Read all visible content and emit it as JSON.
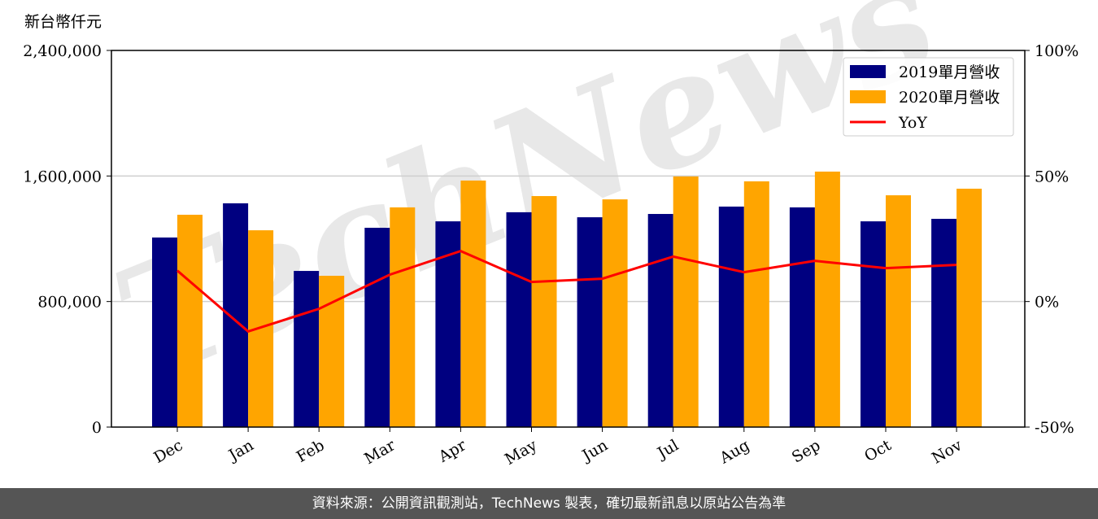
{
  "chart_data": {
    "type": "bar",
    "unit_label": "新台幣仟元",
    "categories": [
      "Dec",
      "Jan",
      "Feb",
      "Mar",
      "Apr",
      "May",
      "Jun",
      "Jul",
      "Aug",
      "Sep",
      "Oct",
      "Nov"
    ],
    "series": [
      {
        "name": "2019單月營收",
        "type": "bar",
        "axis": "left",
        "color": "#000080",
        "values": [
          1208000,
          1426000,
          995000,
          1270000,
          1311000,
          1369000,
          1337000,
          1358000,
          1405000,
          1400000,
          1311000,
          1327000
        ]
      },
      {
        "name": "2020單月營收",
        "type": "bar",
        "axis": "left",
        "color": "#FFA500",
        "values": [
          1353000,
          1254000,
          964000,
          1400000,
          1571000,
          1472000,
          1451000,
          1597000,
          1566000,
          1628000,
          1477000,
          1519000
        ]
      },
      {
        "name": "YoY",
        "type": "line",
        "axis": "right",
        "color": "#FF0000",
        "values": [
          12.3,
          -11.9,
          -2.9,
          10.7,
          20.1,
          7.8,
          9.1,
          17.9,
          11.7,
          16.2,
          13.3,
          14.6
        ]
      }
    ],
    "ylim": [
      0,
      2400000
    ],
    "yticks": [
      "0",
      "800,000",
      "1,600,000",
      "2,400,000"
    ],
    "y2lim": [
      -50,
      100
    ],
    "y2ticks": [
      "-50%",
      "0%",
      "50%",
      "100%"
    ],
    "grid": "horizontal",
    "legend": "top-right"
  },
  "watermark": "TechNews",
  "footer": "資料來源：公開資訊觀測站，TechNews 製表，確切最新訊息以原站公告為準"
}
